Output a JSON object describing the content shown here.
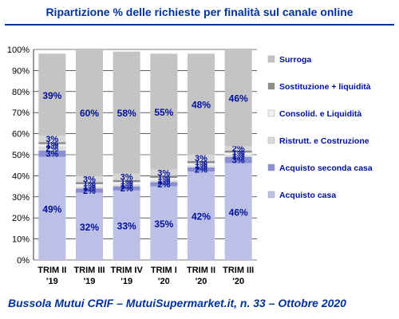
{
  "title": "Ripartizione % delle richieste per finalità sul canale online",
  "footer": "Bussola Mutui CRIF – MutuiSupermarket.it, n. 33 – Ottobre 2020",
  "colors": {
    "title": "#003399",
    "tick_text": "#000000",
    "label_text": "#00109a",
    "gridline": "#000000"
  },
  "chart_data": {
    "type": "bar",
    "stacked": true,
    "percent_stacked": true,
    "categories": [
      [
        "TRIM II",
        "'19"
      ],
      [
        "TRIM III",
        "'19"
      ],
      [
        "TRIM IV",
        "'19"
      ],
      [
        "TRIM I",
        "'20"
      ],
      [
        "TRIM II",
        "'20"
      ],
      [
        "TRIM III",
        "'20"
      ]
    ],
    "ylim": [
      0,
      100
    ],
    "yticks": [
      "0%",
      "10%",
      "20%",
      "30%",
      "40%",
      "50%",
      "60%",
      "70%",
      "80%",
      "90%",
      "100%"
    ],
    "grid": true,
    "legend_position": "right",
    "series": [
      {
        "name": "Acquisto casa",
        "color": "#bcc0e6",
        "values": [
          49,
          32,
          33,
          35,
          42,
          46
        ],
        "labels": [
          "49%",
          "32%",
          "33%",
          "35%",
          "42%",
          "46%"
        ]
      },
      {
        "name": "Acquisto seconda casa",
        "color": "#8a8fcf",
        "values": [
          3,
          2,
          2,
          2,
          2,
          3
        ],
        "labels": [
          "3%",
          "2%",
          "2%",
          "2%",
          "2%",
          "3%"
        ]
      },
      {
        "name": "Ristrutt. e Costruzione",
        "color": "#dcdcdc",
        "values": [
          2,
          1,
          1,
          1,
          1,
          1
        ],
        "labels": [
          "2%",
          "1%",
          "1%",
          "1%",
          "1%",
          "1%"
        ]
      },
      {
        "name": "Consolid. e Liquidità",
        "color": "#f0f0f0",
        "values": [
          1,
          1,
          1,
          1,
          1,
          1
        ],
        "labels": [
          "1%",
          "1%",
          "1%",
          "1%",
          "1%",
          "1%"
        ]
      },
      {
        "name": "Sostituzione + liquidità",
        "color": "#8c8c8c",
        "values": [
          1,
          1,
          1,
          1,
          1,
          1
        ],
        "labels": [
          "1%",
          "1%",
          "1%",
          "1%",
          "1%",
          "1%"
        ]
      },
      {
        "name": "",
        "color": "#d6d6d6",
        "values": [
          3,
          3,
          3,
          3,
          3,
          2
        ],
        "labels": [
          "3%",
          "3%",
          "3%",
          "3%",
          "3%",
          "2%"
        ]
      },
      {
        "name": "Surroga",
        "color": "#c4c4c4",
        "values": [
          39,
          60,
          58,
          55,
          48,
          46
        ],
        "labels": [
          "39%",
          "60%",
          "58%",
          "55%",
          "48%",
          "46%"
        ]
      }
    ],
    "legend": [
      {
        "name": "Surroga",
        "color": "#c4c4c4"
      },
      {
        "name": "Sostituzione + liquidità",
        "color": "#8c8c8c"
      },
      {
        "name": "Consolid. e Liquidità",
        "color": "#f0f0f0"
      },
      {
        "name": "Ristrutt. e Costruzione",
        "color": "#dcdcdc"
      },
      {
        "name": "Acquisto seconda casa",
        "color": "#8a8fcf"
      },
      {
        "name": "Acquisto casa",
        "color": "#bcc0e6"
      }
    ]
  }
}
